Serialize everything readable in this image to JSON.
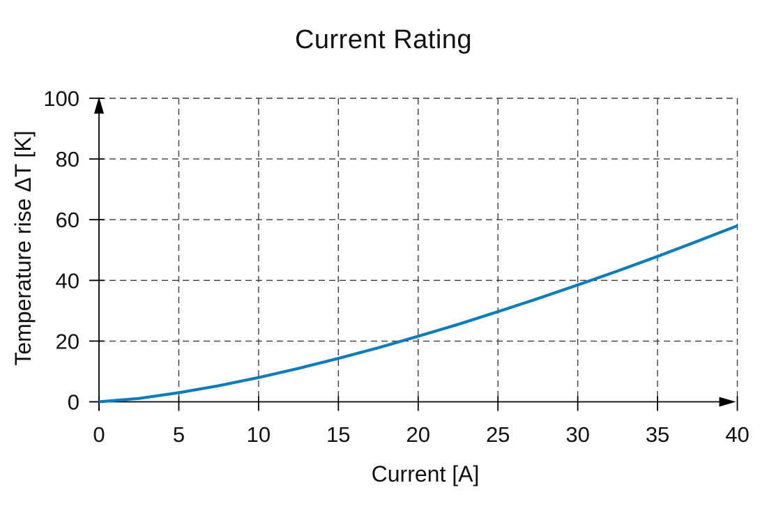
{
  "chart_data": {
    "type": "line",
    "title": "Current Rating",
    "xlabel": "Current [A]",
    "ylabel": "Temperature rise ΔT [K]",
    "xlim": [
      0,
      40
    ],
    "ylim": [
      0,
      100
    ],
    "x_ticks": [
      0,
      5,
      10,
      15,
      20,
      25,
      30,
      35,
      40
    ],
    "y_ticks": [
      0,
      20,
      40,
      60,
      80,
      100
    ],
    "grid": "dashed",
    "legend": "none",
    "axis_arrows": true,
    "background_color": "#ffffff",
    "text_color": "#111111",
    "series": [
      {
        "name": "temperature-rise-vs-current",
        "color": "#0d7cbd",
        "x": [
          0,
          2.5,
          5,
          7.5,
          10,
          12.5,
          15,
          17.5,
          20,
          22.5,
          25,
          27.5,
          30,
          32.5,
          35,
          37.5,
          40
        ],
        "y": [
          0,
          1.1,
          3.0,
          5.3,
          8.0,
          11.0,
          14.3,
          17.8,
          21.6,
          25.5,
          29.7,
          34.0,
          38.5,
          43.1,
          47.9,
          52.9,
          58.0
        ]
      }
    ]
  }
}
